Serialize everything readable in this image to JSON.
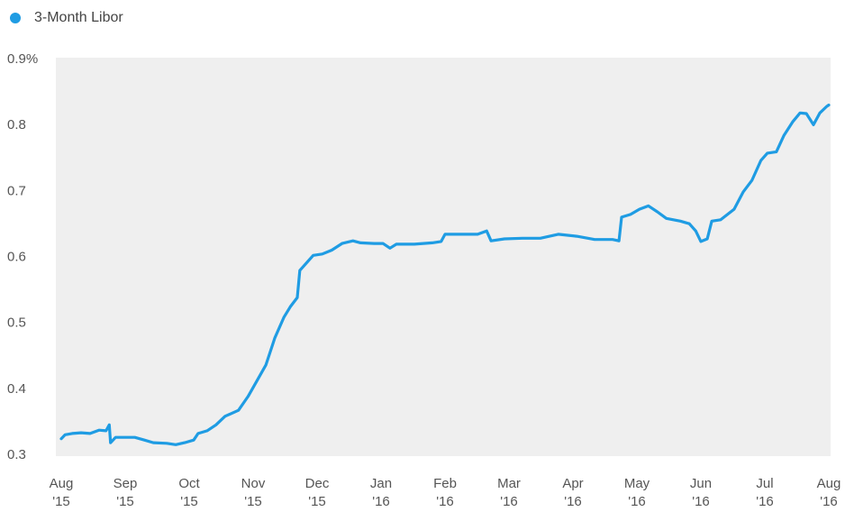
{
  "chart_data": {
    "type": "line",
    "series": [
      {
        "name": "3-Month Libor",
        "color": "#1f9ce3",
        "x": [
          0,
          0.06,
          0.17,
          0.31,
          0.45,
          0.59,
          0.7,
          0.75,
          0.77,
          0.85,
          1.15,
          1.3,
          1.44,
          1.65,
          1.79,
          1.93,
          2.07,
          2.14,
          2.28,
          2.42,
          2.56,
          2.77,
          2.92,
          3.06,
          3.2,
          3.34,
          3.48,
          3.58,
          3.69,
          3.73,
          3.83,
          3.94,
          4.08,
          4.23,
          4.39,
          4.56,
          4.68,
          4.89,
          5.03,
          5.14,
          5.24,
          5.52,
          5.8,
          5.94,
          6.0,
          6.23,
          6.51,
          6.65,
          6.72,
          6.93,
          7.21,
          7.49,
          7.77,
          8.06,
          8.34,
          8.62,
          8.72,
          8.76,
          8.9,
          9.04,
          9.18,
          9.32,
          9.46,
          9.68,
          9.82,
          9.92,
          10.0,
          10.1,
          10.17,
          10.31,
          10.52,
          10.66,
          10.8,
          10.94,
          11.04,
          11.18,
          11.3,
          11.44,
          11.55,
          11.65,
          11.76,
          11.86,
          11.97,
          12.0
        ],
        "values": [
          0.325,
          0.331,
          0.333,
          0.334,
          0.333,
          0.338,
          0.337,
          0.346,
          0.319,
          0.327,
          0.327,
          0.323,
          0.319,
          0.318,
          0.316,
          0.319,
          0.323,
          0.333,
          0.337,
          0.346,
          0.359,
          0.368,
          0.389,
          0.413,
          0.437,
          0.478,
          0.509,
          0.525,
          0.539,
          0.58,
          0.591,
          0.603,
          0.605,
          0.611,
          0.621,
          0.625,
          0.622,
          0.621,
          0.621,
          0.614,
          0.62,
          0.62,
          0.622,
          0.624,
          0.635,
          0.635,
          0.635,
          0.64,
          0.625,
          0.628,
          0.629,
          0.629,
          0.635,
          0.632,
          0.627,
          0.627,
          0.625,
          0.661,
          0.665,
          0.673,
          0.678,
          0.669,
          0.659,
          0.655,
          0.651,
          0.64,
          0.624,
          0.628,
          0.655,
          0.657,
          0.673,
          0.699,
          0.717,
          0.747,
          0.758,
          0.76,
          0.785,
          0.806,
          0.819,
          0.818,
          0.801,
          0.819,
          0.829,
          0.831
        ]
      }
    ],
    "xlim": [
      0,
      12
    ],
    "xticks": [
      {
        "value": 0,
        "label": "Aug",
        "year": "'15"
      },
      {
        "value": 1,
        "label": "Sep",
        "year": "'15"
      },
      {
        "value": 2,
        "label": "Oct",
        "year": "'15"
      },
      {
        "value": 3,
        "label": "Nov",
        "year": "'15"
      },
      {
        "value": 4,
        "label": "Dec",
        "year": "'15"
      },
      {
        "value": 5,
        "label": "Jan",
        "year": "'16"
      },
      {
        "value": 6,
        "label": "Feb",
        "year": "'16"
      },
      {
        "value": 7,
        "label": "Mar",
        "year": "'16"
      },
      {
        "value": 8,
        "label": "Apr",
        "year": "'16"
      },
      {
        "value": 9,
        "label": "May",
        "year": "'16"
      },
      {
        "value": 10,
        "label": "Jun",
        "year": "'16"
      },
      {
        "value": 11,
        "label": "Jul",
        "year": "'16"
      },
      {
        "value": 12,
        "label": "Aug",
        "year": "'16"
      }
    ],
    "ylim": [
      0.3,
      0.9
    ],
    "yticks": [
      0.3,
      0.4,
      0.5,
      0.6,
      0.7,
      0.8,
      {
        "value": 0.9,
        "label": "0.9%"
      }
    ],
    "grid": false
  }
}
